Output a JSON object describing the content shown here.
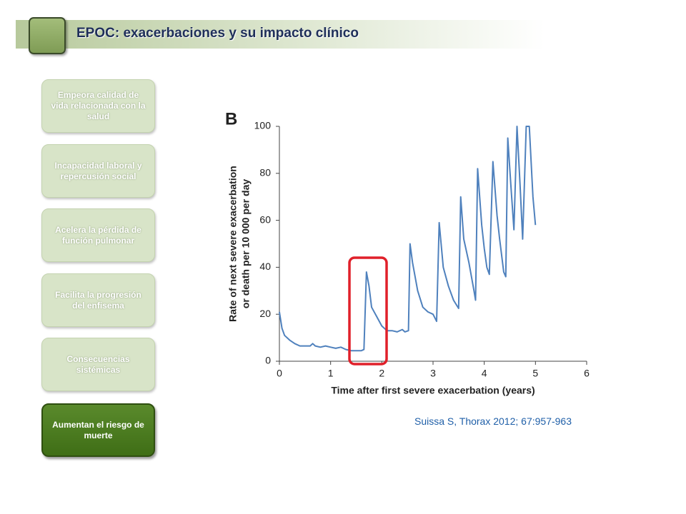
{
  "header": {
    "title": "EPOC: exacerbaciones y su impacto clínico"
  },
  "sidebar": {
    "items": [
      "Empeora calidad de vida relacionada con la salud",
      "Incapacidad laboral y repercusión social",
      "Acelera la pérdida de función pulmonar",
      "Facilita la progresión del enfisema",
      "Consecuencias sistémicas",
      "Aumentan el riesgo de muerte"
    ]
  },
  "citation": "Suissa S, Thorax 2012; 67:957-963",
  "chart_data": {
    "type": "line",
    "panel_label": "B",
    "xlabel": "Time after first severe exacerbation (years)",
    "ylabel": [
      "Rate of next severe exacerbation",
      "or death per 10 000 per day"
    ],
    "color": "#4f81bd",
    "x": [
      0,
      0.05,
      0.1,
      0.2,
      0.3,
      0.4,
      0.5,
      0.6,
      0.65,
      0.7,
      0.8,
      0.9,
      1.0,
      1.1,
      1.2,
      1.3,
      1.4,
      1.6,
      1.65,
      1.7,
      1.75,
      1.8,
      1.9,
      2.0,
      2.1,
      2.2,
      2.3,
      2.4,
      2.45,
      2.52,
      2.55,
      2.6,
      2.7,
      2.8,
      2.9,
      3.0,
      3.07,
      3.12,
      3.2,
      3.3,
      3.4,
      3.5,
      3.54,
      3.6,
      3.7,
      3.8,
      3.83,
      3.87,
      3.95,
      4.0,
      4.05,
      4.1,
      4.17,
      4.25,
      4.3,
      4.38,
      4.42,
      4.46,
      4.52,
      4.58,
      4.64,
      4.7,
      4.75,
      4.82,
      4.88,
      4.95,
      5.0
    ],
    "values": [
      21,
      14,
      11,
      9,
      7.5,
      6.5,
      6.5,
      6.5,
      7.5,
      6.5,
      6,
      6.5,
      6,
      5.5,
      6,
      5,
      4.5,
      4.5,
      5,
      38,
      32,
      23,
      19,
      15,
      13,
      13,
      12.5,
      13.5,
      12.5,
      13,
      50,
      42,
      30,
      23,
      21,
      20,
      17,
      59,
      40,
      32,
      26,
      22.5,
      70,
      52,
      42,
      30,
      26,
      82,
      58,
      48,
      40,
      37,
      85,
      62,
      52,
      38,
      36,
      95,
      75,
      56,
      100,
      75,
      52,
      100,
      100,
      70,
      58
    ],
    "xlim": [
      0,
      6
    ],
    "xticks": [
      0,
      1,
      2,
      3,
      4,
      5,
      6
    ],
    "ylim": [
      0,
      100
    ],
    "yticks": [
      0,
      20,
      40,
      60,
      80,
      100
    ]
  }
}
